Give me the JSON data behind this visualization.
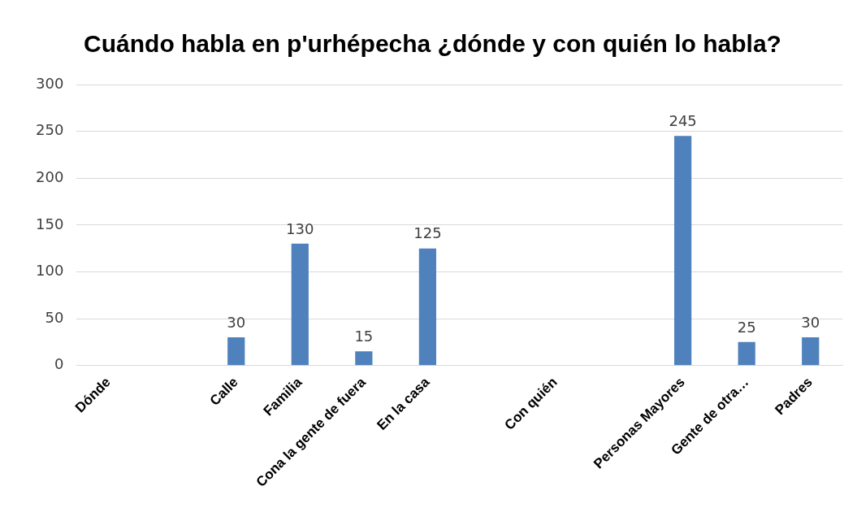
{
  "chart_data": {
    "type": "bar",
    "title": "Cuándo habla en p'urhépecha ¿dónde y con quién lo habla?",
    "categories": [
      "Dónde",
      null,
      "Calle",
      "Familia",
      "Cona la gente de fuera",
      "En la casa",
      null,
      "Con quién",
      null,
      "Personas Mayores",
      "Gente de otra…",
      "Padres"
    ],
    "values": [
      null,
      null,
      30,
      130,
      15,
      125,
      null,
      null,
      null,
      245,
      25,
      30
    ],
    "color": "#4f81bd",
    "ylim": [
      0,
      300
    ],
    "yticks": [
      0,
      50,
      100,
      150,
      200,
      250,
      300
    ],
    "grid": "y",
    "legend": false,
    "data_labels": true
  }
}
